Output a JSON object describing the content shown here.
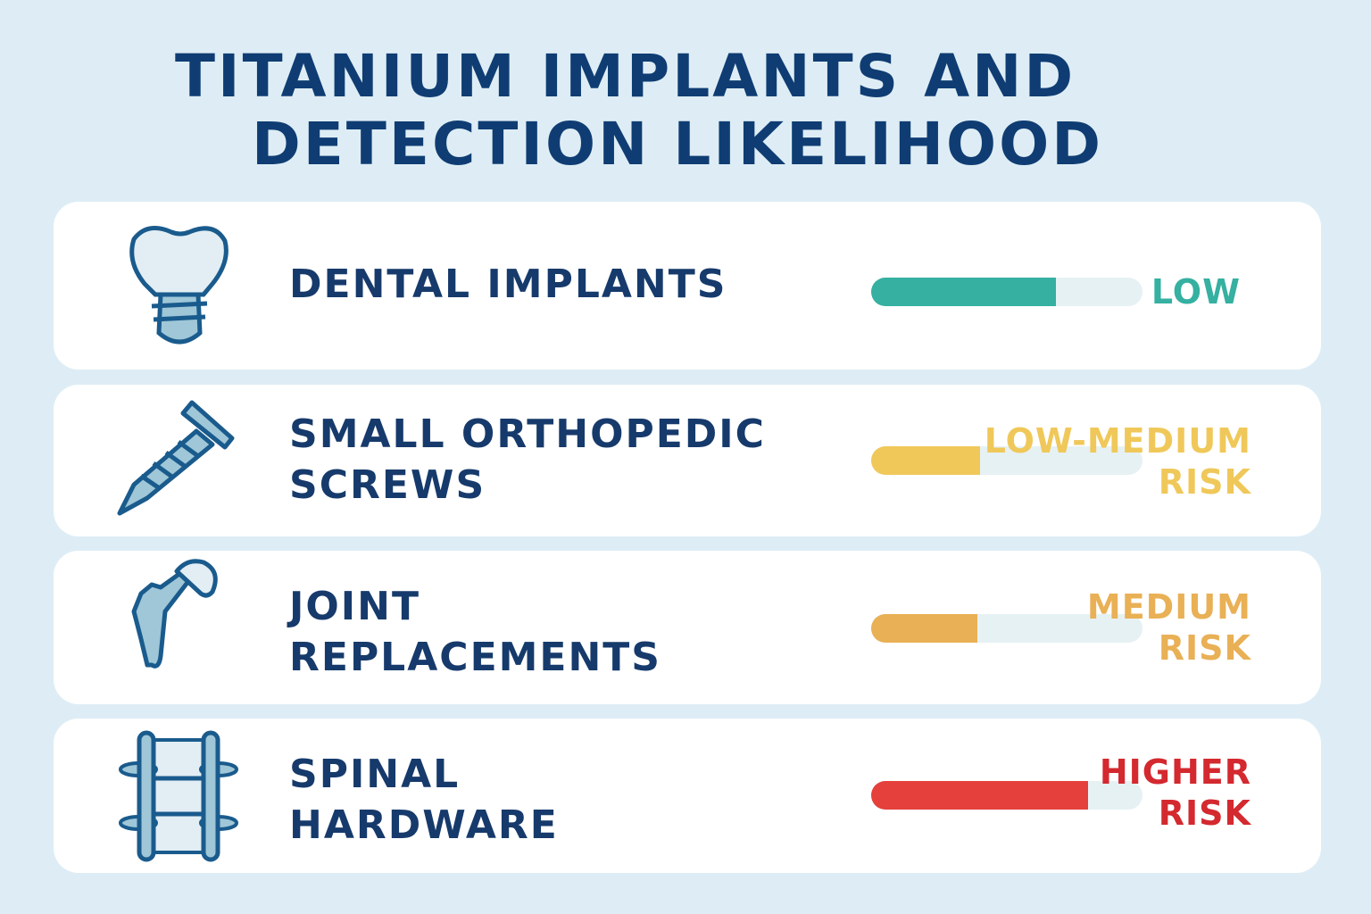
{
  "title": {
    "line1": "TITANIUM IMPLANTS AND",
    "line2": "DETECTION LIKELIHOOD"
  },
  "rows": [
    {
      "label": "DENTAL IMPLANTS",
      "risk": "LOW",
      "level": 0.68,
      "color": "#35b0a1",
      "icon": "dental-implant-icon"
    },
    {
      "label": "SMALL ORTHOPEDIC\nSCREWS",
      "risk": "LOW-MEDIUM\nRISK",
      "level": 0.4,
      "color": "#f0c85a",
      "icon": "screw-icon"
    },
    {
      "label": "JOINT\nREPLACEMENTS",
      "risk": "MEDIUM\nRISK",
      "level": 0.39,
      "color": "#e9b055",
      "icon": "hip-joint-icon"
    },
    {
      "label": "SPINAL\nHARDWARE",
      "risk": "HIGHER\nRISK",
      "level": 0.8,
      "color": "#e5403b",
      "riskColor": "#d3292f",
      "icon": "spinal-hardware-icon"
    }
  ]
}
